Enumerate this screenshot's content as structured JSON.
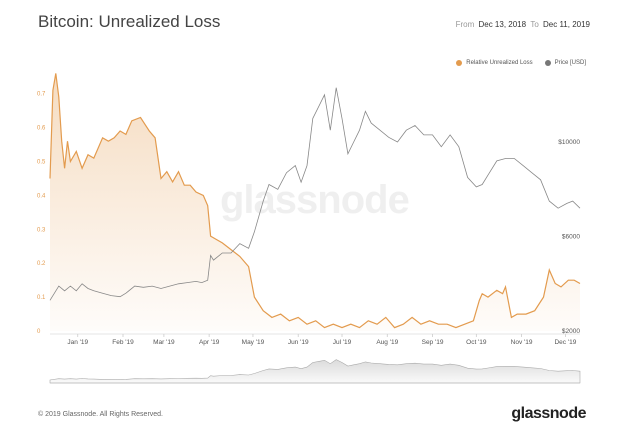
{
  "header": {
    "title": "Bitcoin: Unrealized Loss",
    "from_label": "From",
    "from_date": "Dec 13, 2018",
    "to_label": "To",
    "to_date": "Dec 11, 2019"
  },
  "legend": {
    "series1": "Relative Unrealized Loss",
    "series2": "Price [USD]",
    "color1": "#e39b4e",
    "color2": "#777777"
  },
  "watermark": "glassnode",
  "footer": {
    "copyright": "© 2019 Glassnode. All Rights Reserved.",
    "logo": "glassnode"
  },
  "chart_data": {
    "type": "line",
    "title": "Bitcoin: Unrealized Loss",
    "x_range": [
      "Dec 13, 2018",
      "Dec 11, 2019"
    ],
    "x_ticks": [
      "Jan '19",
      "Feb '19",
      "Mar '19",
      "Apr '19",
      "May '19",
      "Jun '19",
      "Jul '19",
      "Aug '19",
      "Sep '19",
      "Oct '19",
      "Nov '19",
      "Dec '19"
    ],
    "x_tick_days": [
      19,
      50,
      78,
      109,
      139,
      170,
      200,
      231,
      262,
      292,
      323,
      353
    ],
    "y_left": {
      "label": "Relative Unrealized Loss",
      "ticks": [
        "0",
        "0.1",
        "0.2",
        "0.3",
        "0.4",
        "0.5",
        "0.6",
        "0.7"
      ],
      "lim": [
        0,
        0.77
      ]
    },
    "y_right": {
      "label": "Price [USD]",
      "ticks": [
        "$2000",
        "$6000",
        "$10000"
      ],
      "tick_values": [
        2000,
        6000,
        10000
      ]
    },
    "series": [
      {
        "name": "Relative Unrealized Loss",
        "color": "#e39b4e",
        "fill": true,
        "days": [
          0,
          2,
          4,
          6,
          8,
          10,
          12,
          14,
          18,
          22,
          26,
          30,
          36,
          40,
          44,
          48,
          52,
          56,
          62,
          68,
          72,
          76,
          80,
          84,
          88,
          92,
          96,
          100,
          105,
          108,
          110,
          114,
          118,
          124,
          130,
          136,
          140,
          146,
          152,
          158,
          164,
          170,
          176,
          182,
          188,
          194,
          200,
          206,
          212,
          218,
          224,
          230,
          236,
          242,
          248,
          254,
          260,
          266,
          272,
          278,
          284,
          290,
          294,
          296,
          300,
          306,
          310,
          312,
          316,
          320,
          326,
          332,
          338,
          342,
          346,
          350,
          355,
          359,
          363
        ],
        "values": [
          0.45,
          0.71,
          0.76,
          0.69,
          0.56,
          0.48,
          0.56,
          0.5,
          0.53,
          0.48,
          0.52,
          0.51,
          0.57,
          0.56,
          0.57,
          0.59,
          0.58,
          0.62,
          0.63,
          0.59,
          0.57,
          0.45,
          0.47,
          0.44,
          0.47,
          0.43,
          0.43,
          0.41,
          0.4,
          0.37,
          0.28,
          0.27,
          0.26,
          0.24,
          0.22,
          0.19,
          0.1,
          0.06,
          0.04,
          0.05,
          0.03,
          0.04,
          0.02,
          0.03,
          0.01,
          0.02,
          0.01,
          0.02,
          0.01,
          0.03,
          0.02,
          0.04,
          0.01,
          0.02,
          0.04,
          0.02,
          0.03,
          0.02,
          0.02,
          0.01,
          0.02,
          0.03,
          0.09,
          0.11,
          0.1,
          0.12,
          0.11,
          0.13,
          0.04,
          0.05,
          0.05,
          0.06,
          0.1,
          0.18,
          0.14,
          0.13,
          0.15,
          0.15,
          0.14
        ]
      },
      {
        "name": "Price [USD]",
        "color": "#888888",
        "fill": false,
        "days": [
          0,
          6,
          10,
          14,
          18,
          22,
          26,
          30,
          36,
          42,
          48,
          52,
          58,
          64,
          70,
          76,
          82,
          88,
          94,
          100,
          104,
          108,
          110,
          112,
          118,
          124,
          130,
          136,
          140,
          146,
          150,
          156,
          162,
          168,
          172,
          176,
          180,
          184,
          188,
          192,
          196,
          200,
          204,
          208,
          212,
          216,
          220,
          226,
          232,
          238,
          244,
          250,
          256,
          262,
          268,
          274,
          280,
          286,
          292,
          296,
          300,
          306,
          312,
          318,
          324,
          330,
          336,
          342,
          348,
          354,
          358,
          363
        ],
        "values": [
          3300,
          3900,
          3700,
          3900,
          3700,
          4000,
          3800,
          3700,
          3600,
          3500,
          3450,
          3600,
          3900,
          3850,
          3900,
          3800,
          3900,
          4000,
          4050,
          4100,
          4050,
          4150,
          5200,
          5000,
          5300,
          5300,
          5700,
          5500,
          6200,
          7500,
          8200,
          8000,
          8700,
          9000,
          8300,
          9000,
          11000,
          11500,
          12000,
          10500,
          12300,
          11000,
          9500,
          10000,
          10500,
          11300,
          10800,
          10500,
          10200,
          10000,
          10500,
          10700,
          10300,
          10300,
          9800,
          10300,
          9800,
          8500,
          8100,
          8200,
          8600,
          9200,
          9300,
          9300,
          9000,
          8700,
          8400,
          7500,
          7200,
          7400,
          7500,
          7200
        ]
      }
    ]
  }
}
